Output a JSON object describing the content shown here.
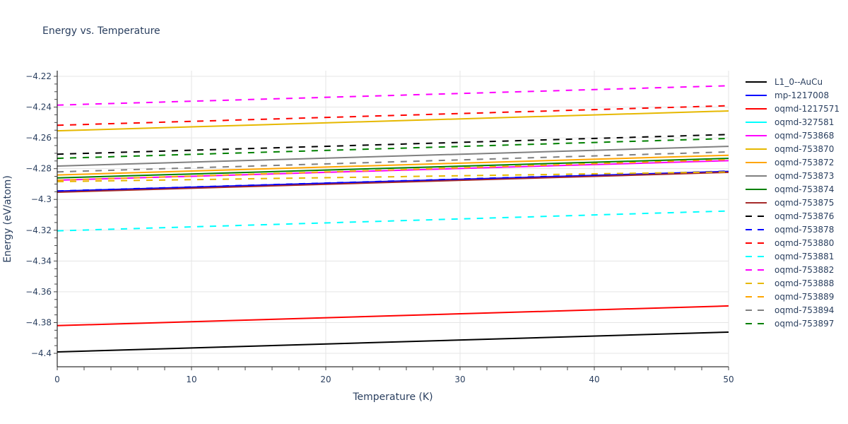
{
  "chart_data": {
    "type": "line",
    "title": "Energy vs. Temperature",
    "xlabel": "Temperature (K)",
    "ylabel": "Energy (eV/atom)",
    "xlim": [
      0,
      50
    ],
    "ylim": [
      -4.409,
      -4.217
    ],
    "x_ticks": [
      0,
      10,
      20,
      30,
      40,
      50
    ],
    "y_ticks": [
      -4.22,
      -4.24,
      -4.26,
      -4.28,
      -4.3,
      -4.32,
      -4.34,
      -4.36,
      -4.38,
      -4.4
    ],
    "y_tick_labels": [
      "−4.22",
      "−4.24",
      "−4.26",
      "−4.28",
      "−4.3",
      "−4.32",
      "−4.34",
      "−4.36",
      "−4.38",
      "−4.4"
    ],
    "x": [
      0,
      50
    ],
    "grid": true,
    "legend_position": "right",
    "series": [
      {
        "name": "L1_0--AuCu",
        "color": "#000000",
        "dash": "solid",
        "values": [
          -4.3991,
          -4.3862
        ]
      },
      {
        "name": "mp-1217008",
        "color": "#0000ff",
        "dash": "solid",
        "values": [
          -4.2946,
          -4.2818
        ]
      },
      {
        "name": "oqmd-1217571",
        "color": "#ff0000",
        "dash": "solid",
        "values": [
          -4.382,
          -4.3692
        ]
      },
      {
        "name": "oqmd-327581",
        "color": "#00ffff",
        "dash": "solid",
        "values": [
          null,
          null
        ]
      },
      {
        "name": "oqmd-753868",
        "color": "#ff00ff",
        "dash": "solid",
        "values": [
          -4.2875,
          -4.2748
        ]
      },
      {
        "name": "oqmd-753870",
        "color": "#e6b800",
        "dash": "solid",
        "values": [
          -4.2554,
          -4.2425
        ]
      },
      {
        "name": "oqmd-753872",
        "color": "#ffa500",
        "dash": "solid",
        "values": [
          -4.2841,
          -4.2713
        ]
      },
      {
        "name": "oqmd-753873",
        "color": "#808080",
        "dash": "solid",
        "values": [
          -4.2783,
          -4.2655
        ]
      },
      {
        "name": "oqmd-753874",
        "color": "#008000",
        "dash": "solid",
        "values": [
          -4.286,
          -4.2733
        ]
      },
      {
        "name": "oqmd-753875",
        "color": "#a52a2a",
        "dash": "solid",
        "values": [
          -4.2953,
          -4.2824
        ]
      },
      {
        "name": "oqmd-753876",
        "color": "#000000",
        "dash": "dash",
        "values": [
          -4.2706,
          -4.2578
        ]
      },
      {
        "name": "oqmd-753878",
        "color": "#0000ff",
        "dash": "dash",
        "values": [
          -4.2945,
          -4.2816
        ]
      },
      {
        "name": "oqmd-753880",
        "color": "#ff0000",
        "dash": "dash",
        "values": [
          -4.2518,
          -4.2391
        ]
      },
      {
        "name": "oqmd-753881",
        "color": "#00ffff",
        "dash": "dash",
        "values": [
          -4.3204,
          -4.3075
        ]
      },
      {
        "name": "oqmd-753882",
        "color": "#ff00ff",
        "dash": "dash",
        "values": [
          -4.2387,
          -4.2261
        ]
      },
      {
        "name": "oqmd-753888",
        "color": "#e6b800",
        "dash": "dash",
        "values": [
          -4.2884,
          -4.2821
        ]
      },
      {
        "name": "oqmd-753889",
        "color": "#ffa500",
        "dash": "dash",
        "values": [
          -4.2875,
          -4.2741
        ]
      },
      {
        "name": "oqmd-753894",
        "color": "#808080",
        "dash": "dash",
        "values": [
          -4.2821,
          -4.2691
        ]
      },
      {
        "name": "oqmd-753897",
        "color": "#008000",
        "dash": "dash",
        "values": [
          -4.2733,
          -4.2604
        ]
      }
    ]
  }
}
